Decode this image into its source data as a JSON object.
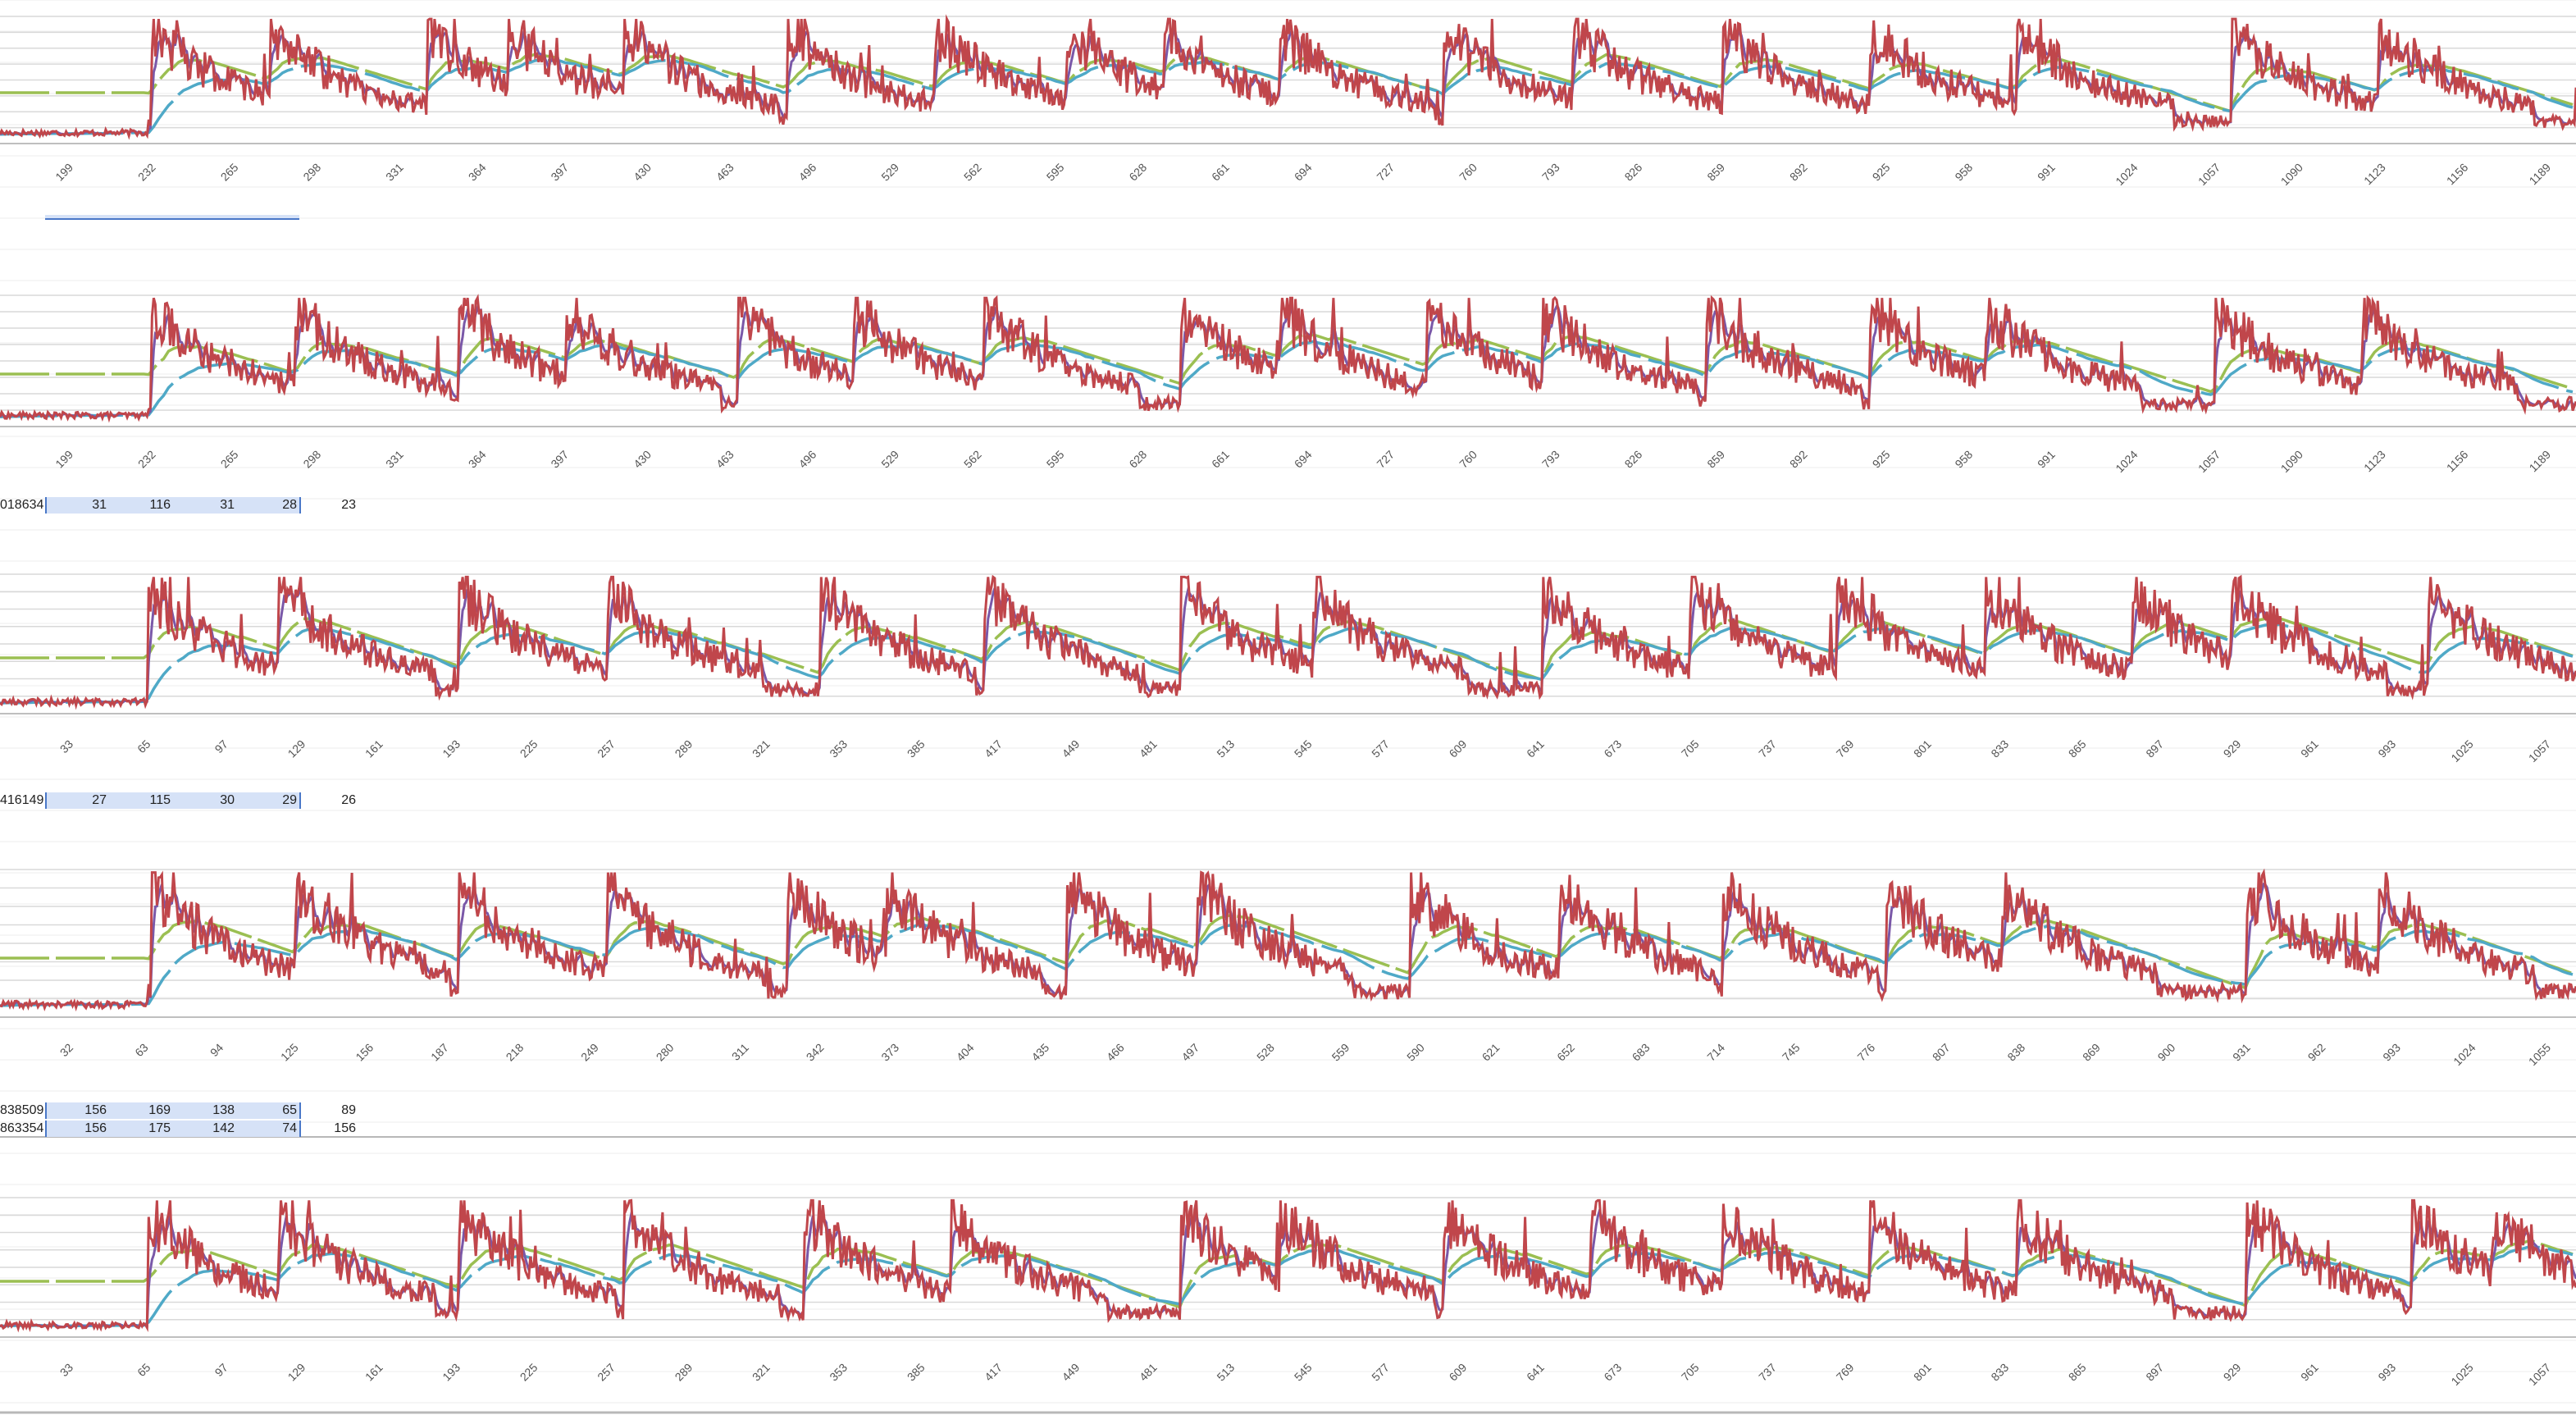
{
  "colors": {
    "actual": "#c0464b",
    "smooth": "#7a58a8",
    "long_avg": "#9bbf52",
    "baseline": "#4fa9c7",
    "gridline": "#d9d9d9",
    "selection": "#d6e2f7"
  },
  "charts": [
    {
      "tick_labels": [
        "199",
        "232",
        "265",
        "298",
        "331",
        "364",
        "397",
        "430",
        "463",
        "496",
        "529",
        "562",
        "595",
        "628",
        "661",
        "694",
        "727",
        "760",
        "793",
        "826",
        "859",
        "892",
        "925",
        "958",
        "991",
        "1024",
        "1057",
        "1090",
        "1123",
        "1156",
        "1189"
      ]
    },
    {
      "tick_labels": [
        "199",
        "232",
        "265",
        "298",
        "331",
        "364",
        "397",
        "430",
        "463",
        "496",
        "529",
        "562",
        "595",
        "628",
        "661",
        "694",
        "727",
        "760",
        "793",
        "826",
        "859",
        "892",
        "925",
        "958",
        "991",
        "1024",
        "1057",
        "1090",
        "1123",
        "1156",
        "1189"
      ]
    },
    {
      "tick_labels": [
        "33",
        "65",
        "97",
        "129",
        "161",
        "193",
        "225",
        "257",
        "289",
        "321",
        "353",
        "385",
        "417",
        "449",
        "481",
        "513",
        "545",
        "577",
        "609",
        "641",
        "673",
        "705",
        "737",
        "769",
        "801",
        "833",
        "865",
        "897",
        "929",
        "961",
        "993",
        "1025",
        "1057"
      ]
    },
    {
      "tick_labels": [
        "32",
        "63",
        "94",
        "125",
        "156",
        "187",
        "218",
        "249",
        "280",
        "311",
        "342",
        "373",
        "404",
        "435",
        "466",
        "497",
        "528",
        "559",
        "590",
        "621",
        "652",
        "683",
        "714",
        "745",
        "776",
        "807",
        "838",
        "869",
        "900",
        "931",
        "962",
        "993",
        "1024",
        "1055"
      ]
    },
    {
      "tick_labels": [
        "33",
        "65",
        "97",
        "129",
        "161",
        "193",
        "225",
        "257",
        "289",
        "321",
        "353",
        "385",
        "417",
        "449",
        "481",
        "513",
        "545",
        "577",
        "609",
        "641",
        "673",
        "705",
        "737",
        "769",
        "801",
        "833",
        "865",
        "897",
        "929",
        "961",
        "993",
        "1025",
        "1057"
      ]
    }
  ],
  "rows": [
    {
      "cells": [
        "018634",
        "31",
        "116",
        "31",
        "28",
        "23"
      ]
    },
    {
      "cells": [
        "416149",
        "27",
        "115",
        "30",
        "29",
        "26"
      ]
    },
    {
      "cells": [
        "838509",
        "156",
        "169",
        "138",
        "65",
        "89"
      ]
    },
    {
      "cells": [
        "863354",
        "156",
        "175",
        "142",
        "74",
        "156"
      ]
    }
  ]
}
